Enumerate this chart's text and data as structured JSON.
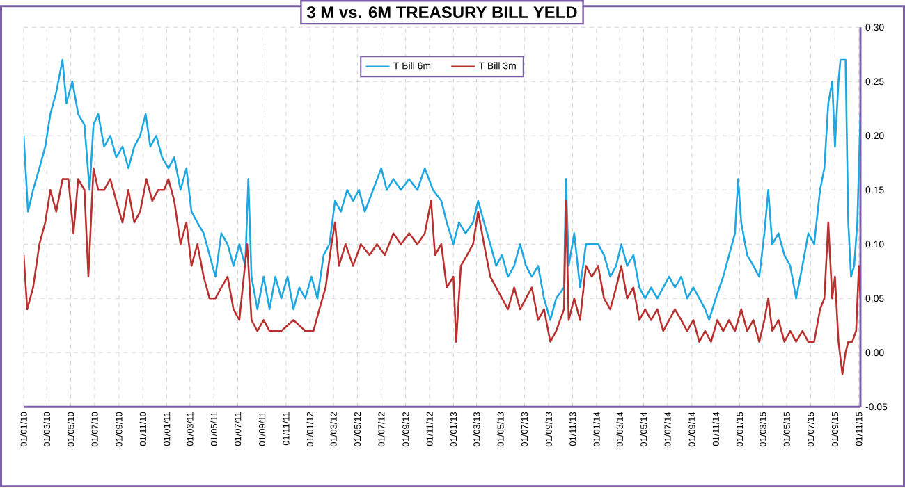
{
  "chart_data": {
    "type": "line",
    "title": "3 M vs. 6M TREASURY BILL YELD",
    "legend": "top",
    "grid": true,
    "marker": "none",
    "line_style": "solid",
    "xlim": [
      "2010-01-01",
      "2015-11-05"
    ],
    "ylim": [
      -0.05,
      0.3
    ],
    "yticks": [
      {
        "value": -0.05,
        "label": "-0.05"
      },
      {
        "value": 0.0,
        "label": "0.00"
      },
      {
        "value": 0.05,
        "label": "0.05"
      },
      {
        "value": 0.1,
        "label": "0.10"
      },
      {
        "value": 0.15,
        "label": "0.15"
      },
      {
        "value": 0.2,
        "label": "0.20"
      },
      {
        "value": 0.25,
        "label": "0.25"
      },
      {
        "value": 0.3,
        "label": "0.30"
      }
    ],
    "xticks": [
      {
        "value": "2010-01-01",
        "label": "01/01/10"
      },
      {
        "value": "2010-03-01",
        "label": "01/03/10"
      },
      {
        "value": "2010-05-01",
        "label": "01/05/10"
      },
      {
        "value": "2010-07-01",
        "label": "01/07/10"
      },
      {
        "value": "2010-09-01",
        "label": "01/09/10"
      },
      {
        "value": "2010-11-01",
        "label": "01/11/10"
      },
      {
        "value": "2011-01-01",
        "label": "01/01/11"
      },
      {
        "value": "2011-03-01",
        "label": "01/03/11"
      },
      {
        "value": "2011-05-01",
        "label": "01/05/11"
      },
      {
        "value": "2011-07-01",
        "label": "01/07/11"
      },
      {
        "value": "2011-09-01",
        "label": "01/09/11"
      },
      {
        "value": "2011-11-01",
        "label": "01/11/11"
      },
      {
        "value": "2012-01-01",
        "label": "01/01/12"
      },
      {
        "value": "2012-03-01",
        "label": "01/03/12"
      },
      {
        "value": "2012-05-01",
        "label": "01/05/12"
      },
      {
        "value": "2012-07-01",
        "label": "01/07/12"
      },
      {
        "value": "2012-09-01",
        "label": "01/09/12"
      },
      {
        "value": "2012-11-01",
        "label": "01/11/12"
      },
      {
        "value": "2013-01-01",
        "label": "01/01/13"
      },
      {
        "value": "2013-03-01",
        "label": "01/03/13"
      },
      {
        "value": "2013-05-01",
        "label": "01/05/13"
      },
      {
        "value": "2013-07-01",
        "label": "01/07/13"
      },
      {
        "value": "2013-09-01",
        "label": "01/09/13"
      },
      {
        "value": "2013-11-01",
        "label": "01/11/13"
      },
      {
        "value": "2014-01-01",
        "label": "01/01/14"
      },
      {
        "value": "2014-03-01",
        "label": "01/03/14"
      },
      {
        "value": "2014-05-01",
        "label": "01/05/14"
      },
      {
        "value": "2014-07-01",
        "label": "01/07/14"
      },
      {
        "value": "2014-09-01",
        "label": "01/09/14"
      },
      {
        "value": "2014-11-01",
        "label": "01/11/14"
      },
      {
        "value": "2015-01-01",
        "label": "01/01/15"
      },
      {
        "value": "2015-03-01",
        "label": "01/03/15"
      },
      {
        "value": "2015-05-01",
        "label": "01/05/15"
      },
      {
        "value": "2015-07-01",
        "label": "01/07/15"
      },
      {
        "value": "2015-09-01",
        "label": "01/09/15"
      },
      {
        "value": "2015-11-01",
        "label": "01/11/15"
      }
    ],
    "series": [
      {
        "name": "T Bill 6m",
        "color": "#1ea7e0",
        "x": [
          "2010-01-01",
          "2010-01-12",
          "2010-01-25",
          "2010-02-10",
          "2010-02-25",
          "2010-03-10",
          "2010-03-25",
          "2010-04-10",
          "2010-04-20",
          "2010-05-05",
          "2010-05-20",
          "2010-06-05",
          "2010-06-18",
          "2010-06-28",
          "2010-07-10",
          "2010-07-25",
          "2010-08-10",
          "2010-08-25",
          "2010-09-10",
          "2010-09-25",
          "2010-10-10",
          "2010-10-25",
          "2010-11-08",
          "2010-11-20",
          "2010-12-05",
          "2010-12-20",
          "2011-01-05",
          "2011-01-20",
          "2011-02-05",
          "2011-02-20",
          "2011-03-05",
          "2011-03-20",
          "2011-04-05",
          "2011-04-20",
          "2011-05-05",
          "2011-05-20",
          "2011-06-05",
          "2011-06-20",
          "2011-07-05",
          "2011-07-20",
          "2011-07-28",
          "2011-08-05",
          "2011-08-20",
          "2011-09-05",
          "2011-09-20",
          "2011-10-05",
          "2011-10-20",
          "2011-11-05",
          "2011-11-20",
          "2011-12-05",
          "2011-12-20",
          "2012-01-05",
          "2012-01-20",
          "2012-02-05",
          "2012-02-20",
          "2012-03-05",
          "2012-03-20",
          "2012-04-05",
          "2012-04-20",
          "2012-05-05",
          "2012-05-20",
          "2012-06-10",
          "2012-07-01",
          "2012-07-15",
          "2012-08-01",
          "2012-08-20",
          "2012-09-10",
          "2012-10-01",
          "2012-10-20",
          "2012-11-10",
          "2012-12-01",
          "2012-12-15",
          "2013-01-01",
          "2013-01-15",
          "2013-02-01",
          "2013-02-20",
          "2013-03-05",
          "2013-03-20",
          "2013-04-05",
          "2013-04-20",
          "2013-05-05",
          "2013-05-20",
          "2013-06-05",
          "2013-06-20",
          "2013-07-05",
          "2013-07-20",
          "2013-08-05",
          "2013-08-20",
          "2013-09-05",
          "2013-09-20",
          "2013-10-10",
          "2013-10-15",
          "2013-10-22",
          "2013-11-05",
          "2013-11-20",
          "2013-12-05",
          "2013-12-20",
          "2014-01-05",
          "2014-01-20",
          "2014-02-05",
          "2014-02-20",
          "2014-03-05",
          "2014-03-20",
          "2014-04-05",
          "2014-04-20",
          "2014-05-05",
          "2014-05-20",
          "2014-06-05",
          "2014-06-20",
          "2014-07-05",
          "2014-07-20",
          "2014-08-05",
          "2014-08-20",
          "2014-09-05",
          "2014-09-20",
          "2014-10-05",
          "2014-10-15",
          "2014-11-01",
          "2014-11-20",
          "2014-12-05",
          "2014-12-20",
          "2014-12-28",
          "2015-01-05",
          "2015-01-20",
          "2015-02-05",
          "2015-02-20",
          "2015-03-05",
          "2015-03-15",
          "2015-03-25",
          "2015-04-10",
          "2015-04-25",
          "2015-05-10",
          "2015-05-25",
          "2015-06-10",
          "2015-06-25",
          "2015-07-10",
          "2015-07-25",
          "2015-08-05",
          "2015-08-15",
          "2015-08-25",
          "2015-09-01",
          "2015-09-10",
          "2015-09-15",
          "2015-09-28",
          "2015-10-05",
          "2015-10-12",
          "2015-10-20",
          "2015-10-28",
          "2015-11-05"
        ],
        "values": [
          0.2,
          0.13,
          0.15,
          0.17,
          0.19,
          0.22,
          0.24,
          0.27,
          0.23,
          0.25,
          0.22,
          0.21,
          0.15,
          0.21,
          0.22,
          0.19,
          0.2,
          0.18,
          0.19,
          0.17,
          0.19,
          0.2,
          0.22,
          0.19,
          0.2,
          0.18,
          0.17,
          0.18,
          0.15,
          0.17,
          0.13,
          0.12,
          0.11,
          0.09,
          0.07,
          0.11,
          0.1,
          0.08,
          0.1,
          0.08,
          0.16,
          0.07,
          0.04,
          0.07,
          0.04,
          0.07,
          0.05,
          0.07,
          0.04,
          0.06,
          0.05,
          0.07,
          0.05,
          0.09,
          0.1,
          0.14,
          0.13,
          0.15,
          0.14,
          0.15,
          0.13,
          0.15,
          0.17,
          0.15,
          0.16,
          0.15,
          0.16,
          0.15,
          0.17,
          0.15,
          0.14,
          0.12,
          0.1,
          0.12,
          0.11,
          0.12,
          0.14,
          0.12,
          0.1,
          0.08,
          0.09,
          0.07,
          0.08,
          0.1,
          0.08,
          0.07,
          0.08,
          0.05,
          0.03,
          0.05,
          0.06,
          0.16,
          0.08,
          0.11,
          0.06,
          0.1,
          0.1,
          0.1,
          0.09,
          0.07,
          0.08,
          0.1,
          0.08,
          0.09,
          0.06,
          0.05,
          0.06,
          0.05,
          0.06,
          0.07,
          0.06,
          0.07,
          0.05,
          0.06,
          0.05,
          0.04,
          0.03,
          0.05,
          0.07,
          0.09,
          0.11,
          0.16,
          0.12,
          0.09,
          0.08,
          0.07,
          0.11,
          0.15,
          0.1,
          0.11,
          0.09,
          0.08,
          0.05,
          0.08,
          0.11,
          0.1,
          0.15,
          0.17,
          0.23,
          0.25,
          0.19,
          0.25,
          0.27,
          0.27,
          0.12,
          0.07,
          0.08,
          0.12,
          0.22
        ]
      },
      {
        "name": "T Bill 3m",
        "color": "#b8312f",
        "x": [
          "2010-01-01",
          "2010-01-10",
          "2010-01-25",
          "2010-02-10",
          "2010-02-25",
          "2010-03-10",
          "2010-03-25",
          "2010-04-10",
          "2010-04-25",
          "2010-05-08",
          "2010-05-20",
          "2010-06-05",
          "2010-06-15",
          "2010-06-28",
          "2010-07-10",
          "2010-07-25",
          "2010-08-10",
          "2010-08-25",
          "2010-09-10",
          "2010-09-25",
          "2010-10-10",
          "2010-10-25",
          "2010-11-10",
          "2010-11-25",
          "2010-12-10",
          "2010-12-25",
          "2011-01-05",
          "2011-01-20",
          "2011-02-05",
          "2011-02-20",
          "2011-03-05",
          "2011-03-20",
          "2011-04-05",
          "2011-04-20",
          "2011-05-05",
          "2011-05-20",
          "2011-06-05",
          "2011-06-20",
          "2011-07-05",
          "2011-07-25",
          "2011-08-05",
          "2011-08-20",
          "2011-09-05",
          "2011-09-20",
          "2011-10-20",
          "2011-11-20",
          "2011-12-20",
          "2012-01-10",
          "2012-01-25",
          "2012-02-10",
          "2012-02-25",
          "2012-03-05",
          "2012-03-15",
          "2012-04-01",
          "2012-04-20",
          "2012-05-10",
          "2012-06-01",
          "2012-06-20",
          "2012-07-10",
          "2012-08-01",
          "2012-08-20",
          "2012-09-10",
          "2012-10-01",
          "2012-10-20",
          "2012-11-05",
          "2012-11-15",
          "2012-12-01",
          "2012-12-15",
          "2013-01-01",
          "2013-01-08",
          "2013-01-20",
          "2013-02-05",
          "2013-02-20",
          "2013-03-05",
          "2013-03-20",
          "2013-04-05",
          "2013-04-20",
          "2013-05-05",
          "2013-05-20",
          "2013-06-05",
          "2013-06-20",
          "2013-07-05",
          "2013-07-20",
          "2013-08-05",
          "2013-08-20",
          "2013-09-05",
          "2013-09-20",
          "2013-10-10",
          "2013-10-15",
          "2013-10-22",
          "2013-11-05",
          "2013-11-20",
          "2013-12-05",
          "2013-12-20",
          "2014-01-05",
          "2014-01-20",
          "2014-02-05",
          "2014-02-20",
          "2014-03-05",
          "2014-03-20",
          "2014-04-05",
          "2014-04-20",
          "2014-05-05",
          "2014-05-20",
          "2014-06-05",
          "2014-06-20",
          "2014-07-05",
          "2014-07-20",
          "2014-08-05",
          "2014-08-20",
          "2014-09-05",
          "2014-09-20",
          "2014-10-05",
          "2014-10-20",
          "2014-11-05",
          "2014-11-20",
          "2014-12-05",
          "2014-12-20",
          "2015-01-05",
          "2015-01-20",
          "2015-02-05",
          "2015-02-20",
          "2015-03-05",
          "2015-03-15",
          "2015-03-25",
          "2015-04-10",
          "2015-04-25",
          "2015-05-10",
          "2015-05-25",
          "2015-06-10",
          "2015-06-25",
          "2015-07-10",
          "2015-07-25",
          "2015-08-05",
          "2015-08-15",
          "2015-08-25",
          "2015-09-01",
          "2015-09-10",
          "2015-09-20",
          "2015-09-28",
          "2015-10-05",
          "2015-10-15",
          "2015-10-25",
          "2015-11-01",
          "2015-11-05"
        ],
        "values": [
          0.09,
          0.04,
          0.06,
          0.1,
          0.12,
          0.15,
          0.13,
          0.16,
          0.16,
          0.11,
          0.16,
          0.15,
          0.07,
          0.17,
          0.15,
          0.15,
          0.16,
          0.14,
          0.12,
          0.15,
          0.12,
          0.13,
          0.16,
          0.14,
          0.15,
          0.15,
          0.16,
          0.14,
          0.1,
          0.12,
          0.08,
          0.1,
          0.07,
          0.05,
          0.05,
          0.06,
          0.07,
          0.04,
          0.03,
          0.1,
          0.03,
          0.02,
          0.03,
          0.02,
          0.02,
          0.03,
          0.02,
          0.02,
          0.04,
          0.06,
          0.1,
          0.12,
          0.08,
          0.1,
          0.08,
          0.1,
          0.09,
          0.1,
          0.09,
          0.11,
          0.1,
          0.11,
          0.1,
          0.11,
          0.14,
          0.09,
          0.1,
          0.06,
          0.07,
          0.01,
          0.08,
          0.09,
          0.1,
          0.13,
          0.1,
          0.07,
          0.06,
          0.05,
          0.04,
          0.06,
          0.04,
          0.05,
          0.06,
          0.03,
          0.04,
          0.01,
          0.02,
          0.04,
          0.14,
          0.03,
          0.05,
          0.03,
          0.08,
          0.07,
          0.08,
          0.05,
          0.04,
          0.06,
          0.08,
          0.05,
          0.06,
          0.03,
          0.04,
          0.03,
          0.04,
          0.02,
          0.03,
          0.04,
          0.03,
          0.02,
          0.03,
          0.01,
          0.02,
          0.01,
          0.03,
          0.02,
          0.03,
          0.02,
          0.04,
          0.02,
          0.03,
          0.01,
          0.03,
          0.05,
          0.02,
          0.03,
          0.01,
          0.02,
          0.01,
          0.02,
          0.01,
          0.01,
          0.04,
          0.05,
          0.12,
          0.05,
          0.07,
          0.01,
          -0.02,
          0.0,
          0.01,
          0.01,
          0.02,
          0.08,
          0.05
        ]
      }
    ]
  }
}
